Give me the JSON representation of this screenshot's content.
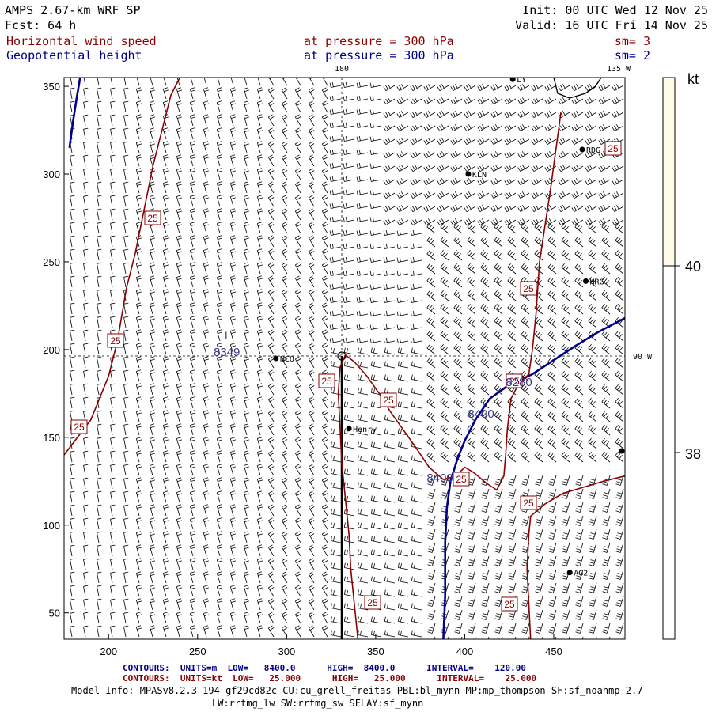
{
  "header": {
    "model": "AMPS 2.67-km WRF SP",
    "forecast": "Fcst:   64 h",
    "init": "Init: 00 UTC Wed 12 Nov 25",
    "valid": "Valid: 16 UTC Fri 14 Nov 25",
    "field1_name": "Horizontal wind speed",
    "field1_level": "at pressure =  300 hPa",
    "field1_sm": "sm= 3",
    "field2_name": "Geopotential height",
    "field2_level": "at pressure =  300 hPa",
    "field2_sm": "sm= 2"
  },
  "map_labels": {
    "lon_180": "180",
    "lon_135w": "135 W",
    "lon_90w": "90 W",
    "contour_value_low": "8349",
    "contour_8400": "8400",
    "contour_8280": "8280",
    "speed_label": "25"
  },
  "stations": [
    {
      "name": "NCO",
      "x": 294,
      "y": 195
    },
    {
      "name": "KLN",
      "x": 402,
      "y": 300
    },
    {
      "name": "RDG",
      "x": 466,
      "y": 314
    },
    {
      "name": "HRG",
      "x": 468,
      "y": 239
    },
    {
      "name": "Henry",
      "x": 335,
      "y": 155
    },
    {
      "name": "AG2",
      "x": 459,
      "y": 73
    },
    {
      "name": "LY",
      "x": 427,
      "y": 354
    }
  ],
  "colorbar": {
    "unit": "kt",
    "labels": [
      "40",
      "38"
    ],
    "colors": {
      "top": "#fffbe6",
      "bottom": "#ffffff"
    }
  },
  "footer": {
    "contours_blue": "CONTOURS:  UNITS=m  LOW=   8400.0      HIGH=  8400.0      INTERVAL=    120.00",
    "contours_red": "CONTOURS:  UNITS=kt  LOW=   25.000      HIGH=   25.000      INTERVAL=    25.000",
    "model_info_1": "Model Info: MPASv8.2.3-194-gf29cd82c CU:cu_grell_freitas PBL:bl_mynn MP:mp_thompson SF:sf_noahmp 2.7",
    "model_info_2": "LW:rrtmg_lw SW:rrtmg_sw SFLAY:sf_mynn"
  },
  "colors": {
    "height_contour": "#00008b",
    "speed_contour": "#8b0000",
    "barb": "#000000"
  },
  "chart_data": {
    "type": "contour",
    "xlim": [
      175,
      490
    ],
    "ylim": [
      35,
      355
    ],
    "xticks": [
      200,
      250,
      300,
      350,
      400,
      450
    ],
    "yticks": [
      50,
      100,
      150,
      200,
      250,
      300,
      350
    ],
    "grid": false,
    "series": [
      {
        "name": "Geopotential height",
        "contour_level": 8400,
        "line": [
          [
            388,
            35
          ],
          [
            389,
            60
          ],
          [
            389,
            90
          ],
          [
            390,
            110
          ],
          [
            392,
            125
          ],
          [
            396,
            138
          ],
          [
            400,
            148
          ],
          [
            406,
            160
          ],
          [
            414,
            172
          ],
          [
            425,
            180
          ],
          [
            438,
            186
          ],
          [
            450,
            194
          ],
          [
            462,
            202
          ],
          [
            475,
            210
          ],
          [
            490,
            218
          ]
        ]
      },
      {
        "name": "Geopotential height",
        "contour_level": 8400,
        "line": [
          [
            178,
            315
          ],
          [
            180,
            330
          ],
          [
            182,
            343
          ],
          [
            184,
            355
          ]
        ]
      },
      {
        "name": "Horizontal wind speed",
        "contour_level": 25,
        "line": [
          [
            175,
            140
          ],
          [
            190,
            160
          ],
          [
            200,
            185
          ],
          [
            205,
            205
          ],
          [
            210,
            235
          ],
          [
            215,
            255
          ],
          [
            220,
            280
          ],
          [
            225,
            305
          ],
          [
            230,
            325
          ],
          [
            235,
            345
          ],
          [
            240,
            355
          ]
        ]
      },
      {
        "name": "Horizontal wind speed",
        "contour_level": 25,
        "line": [
          [
            340,
            35
          ],
          [
            338,
            55
          ],
          [
            336,
            75
          ],
          [
            335,
            95
          ],
          [
            333,
            115
          ],
          [
            331,
            135
          ],
          [
            330,
            155
          ],
          [
            329,
            175
          ],
          [
            330,
            190
          ],
          [
            333,
            197
          ],
          [
            338,
            193
          ],
          [
            345,
            185
          ],
          [
            352,
            175
          ],
          [
            358,
            165
          ],
          [
            365,
            155
          ],
          [
            372,
            145
          ],
          [
            380,
            133
          ],
          [
            388,
            126
          ],
          [
            395,
            128
          ],
          [
            400,
            133
          ],
          [
            405,
            130
          ],
          [
            412,
            124
          ],
          [
            418,
            120
          ],
          [
            422,
            128
          ],
          [
            423,
            140
          ],
          [
            424,
            155
          ],
          [
            426,
            172
          ],
          [
            430,
            180
          ],
          [
            436,
            186
          ],
          [
            438,
            200
          ],
          [
            440,
            220
          ],
          [
            442,
            250
          ],
          [
            445,
            270
          ],
          [
            448,
            290
          ],
          [
            450,
            305
          ],
          [
            452,
            320
          ],
          [
            454,
            335
          ]
        ]
      },
      {
        "name": "Horizontal wind speed",
        "contour_level": 25,
        "line": [
          [
            437,
            35
          ],
          [
            436,
            55
          ],
          [
            435,
            75
          ],
          [
            436,
            95
          ],
          [
            437,
            105
          ],
          [
            445,
            112
          ],
          [
            455,
            118
          ],
          [
            468,
            122
          ],
          [
            478,
            125
          ],
          [
            490,
            128
          ]
        ]
      }
    ]
  }
}
